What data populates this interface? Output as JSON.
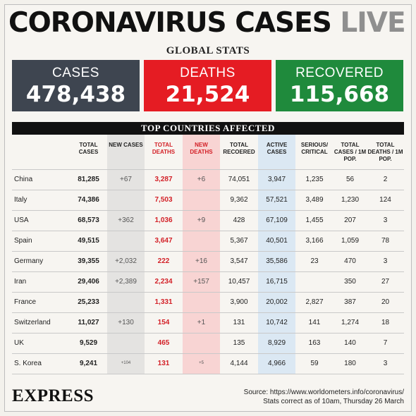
{
  "headline": {
    "main": "CORONAVIRUS CASES",
    "live": "LIVE"
  },
  "global_stats_label": "GLOBAL STATS",
  "stats": {
    "cases": {
      "label": "CASES",
      "value": "478,438",
      "color": "#3e4550"
    },
    "deaths": {
      "label": "DEATHS",
      "value": "21,524",
      "color": "#e51c23"
    },
    "recovered": {
      "label": "RECOVERED",
      "value": "115,668",
      "color": "#1f8a3c"
    }
  },
  "table": {
    "title": "TOP COUNTRIES AFFECTED",
    "headers": [
      "TOTAL CASES",
      "NEW CASES",
      "TOTAL DEATHS",
      "NEW DEATHS",
      "TOTAL RECOERED",
      "ACTIVE CASES",
      "SERIOUS/ CRITICAL",
      "TOTAL CASES / 1M POP.",
      "TOTAL DEATHS / 1M POP."
    ],
    "rows": [
      {
        "country": "China",
        "total_cases": "81,285",
        "new_cases": "+67",
        "total_deaths": "3,287",
        "new_deaths": "+6",
        "total_recovered": "74,051",
        "active": "3,947",
        "serious": "1,235",
        "cases_per_m": "56",
        "deaths_per_m": "2"
      },
      {
        "country": "Italy",
        "total_cases": "74,386",
        "new_cases": "",
        "total_deaths": "7,503",
        "new_deaths": "",
        "total_recovered": "9,362",
        "active": "57,521",
        "serious": "3,489",
        "cases_per_m": "1,230",
        "deaths_per_m": "124"
      },
      {
        "country": "USA",
        "total_cases": "68,573",
        "new_cases": "+362",
        "total_deaths": "1,036",
        "new_deaths": "+9",
        "total_recovered": "428",
        "active": "67,109",
        "serious": "1,455",
        "cases_per_m": "207",
        "deaths_per_m": "3"
      },
      {
        "country": "Spain",
        "total_cases": "49,515",
        "new_cases": "",
        "total_deaths": "3,647",
        "new_deaths": "",
        "total_recovered": "5,367",
        "active": "40,501",
        "serious": "3,166",
        "cases_per_m": "1,059",
        "deaths_per_m": "78"
      },
      {
        "country": "Germany",
        "total_cases": "39,355",
        "new_cases": "+2,032",
        "total_deaths": "222",
        "new_deaths": "+16",
        "total_recovered": "3,547",
        "active": "35,586",
        "serious": "23",
        "cases_per_m": "470",
        "deaths_per_m": "3"
      },
      {
        "country": "Iran",
        "total_cases": "29,406",
        "new_cases": "+2,389",
        "total_deaths": "2,234",
        "new_deaths": "+157",
        "total_recovered": "10,457",
        "active": "16,715",
        "serious": "",
        "cases_per_m": "350",
        "deaths_per_m": "27"
      },
      {
        "country": "France",
        "total_cases": "25,233",
        "new_cases": "",
        "total_deaths": "1,331",
        "new_deaths": "",
        "total_recovered": "3,900",
        "active": "20,002",
        "serious": "2,827",
        "cases_per_m": "387",
        "deaths_per_m": "20"
      },
      {
        "country": "Switzerland",
        "total_cases": "11,027",
        "new_cases": "+130",
        "total_deaths": "154",
        "new_deaths": "+1",
        "total_recovered": "131",
        "active": "10,742",
        "serious": "141",
        "cases_per_m": "1,274",
        "deaths_per_m": "18"
      },
      {
        "country": "UK",
        "total_cases": "9,529",
        "new_cases": "",
        "total_deaths": "465",
        "new_deaths": "",
        "total_recovered": "135",
        "active": "8,929",
        "serious": "163",
        "cases_per_m": "140",
        "deaths_per_m": "7"
      },
      {
        "country": "S. Korea",
        "total_cases": "9,241",
        "new_cases": "+104",
        "total_deaths": "131",
        "new_deaths": "+5",
        "total_recovered": "4,144",
        "active": "4,966",
        "serious": "59",
        "cases_per_m": "180",
        "deaths_per_m": "3"
      }
    ]
  },
  "footer": {
    "brand": "EXPRESS",
    "source_line1": "Source: https://www.worldometers.info/coronavirus/",
    "source_line2": "Stats correct as of 10am, Thursday 26 March"
  }
}
